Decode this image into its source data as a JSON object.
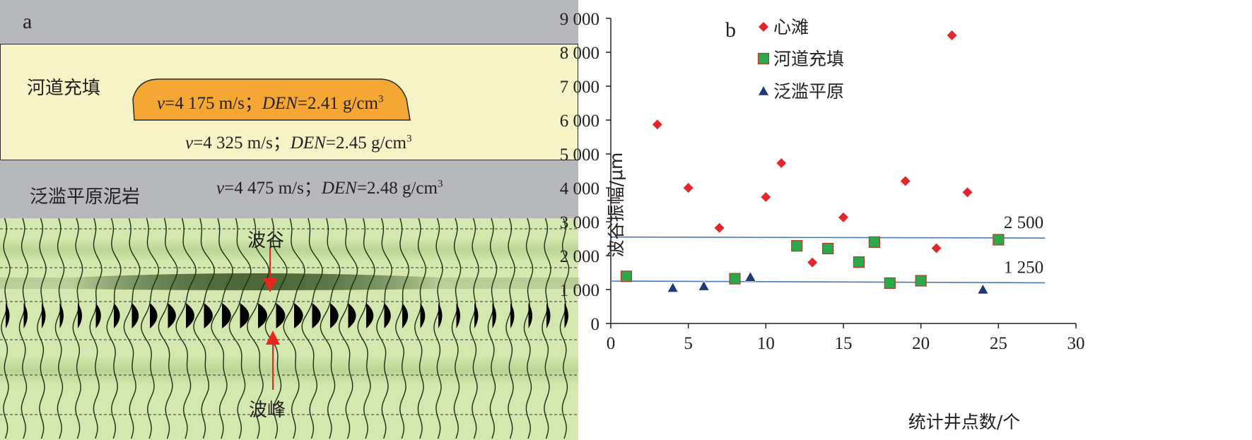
{
  "panel_a": {
    "label": "a",
    "channel_fill_label": "河道充填",
    "floodplain_label": "泛滥平原泥岩",
    "sand_body": {
      "v_prefix": "v",
      "v_value": "=4 175 m/s；",
      "den_prefix": "DEN",
      "den_value": "=2.41 g/cm",
      "sup": "3"
    },
    "channel_layer": {
      "v_prefix": "v",
      "v_value": "=4 325 m/s；",
      "den_prefix": "DEN",
      "den_value": "=2.45 g/cm",
      "sup": "3"
    },
    "floodplain_layer": {
      "v_prefix": "v",
      "v_value": "=4 475 m/s；",
      "den_prefix": "DEN",
      "den_value": "=2.48 g/cm",
      "sup": "3"
    },
    "trough_label": "波谷",
    "peak_label": "波峰",
    "colors": {
      "gray": "#b6b8bc",
      "yellow": "#f6f4c6",
      "sand": "#f4a833",
      "seismic_bg": "#cfe5a8",
      "arrow": "#e8251f"
    }
  },
  "chart_data": {
    "type": "scatter",
    "panel_label": "b",
    "xlabel": "统计井点数/个",
    "ylabel": "波谷振幅/μm",
    "xlim": [
      0,
      30
    ],
    "ylim": [
      0,
      9000
    ],
    "x_ticks": [
      0,
      5,
      10,
      15,
      20,
      25,
      30
    ],
    "y_ticks": [
      0,
      1000,
      2000,
      3000,
      4000,
      5000,
      6000,
      7000,
      8000,
      9000
    ],
    "y_tick_labels": [
      "0",
      "1 000",
      "2 000",
      "3 000",
      "4 000",
      "5 000",
      "6 000",
      "7 000",
      "8 000",
      "9 000"
    ],
    "legend_position": "top",
    "series": [
      {
        "name": "心滩",
        "marker": "diamond",
        "color": "#e3262c",
        "points": [
          [
            3,
            5870
          ],
          [
            5,
            4000
          ],
          [
            7,
            2820
          ],
          [
            10,
            3730
          ],
          [
            11,
            4730
          ],
          [
            13,
            1800
          ],
          [
            15,
            3130
          ],
          [
            19,
            4200
          ],
          [
            21,
            2220
          ],
          [
            22,
            8500
          ],
          [
            23,
            3870
          ]
        ]
      },
      {
        "name": "河道充填",
        "marker": "square",
        "color": "#2aa84a",
        "points": [
          [
            1,
            1390
          ],
          [
            8,
            1320
          ],
          [
            12,
            2290
          ],
          [
            14,
            2210
          ],
          [
            16,
            1810
          ],
          [
            17,
            2400
          ],
          [
            18,
            1190
          ],
          [
            20,
            1260
          ],
          [
            25,
            2470
          ]
        ]
      },
      {
        "name": "泛滥平原",
        "marker": "triangle",
        "color": "#1e3a6e",
        "points": [
          [
            4,
            1050
          ],
          [
            6,
            1100
          ],
          [
            9,
            1370
          ],
          [
            24,
            1000
          ]
        ]
      }
    ],
    "reference_lines": [
      {
        "label": "2 500",
        "from": [
          0,
          2550
        ],
        "to": [
          28,
          2520
        ]
      },
      {
        "label": "1 250",
        "from": [
          0,
          1250
        ],
        "to": [
          28,
          1200
        ]
      }
    ]
  }
}
